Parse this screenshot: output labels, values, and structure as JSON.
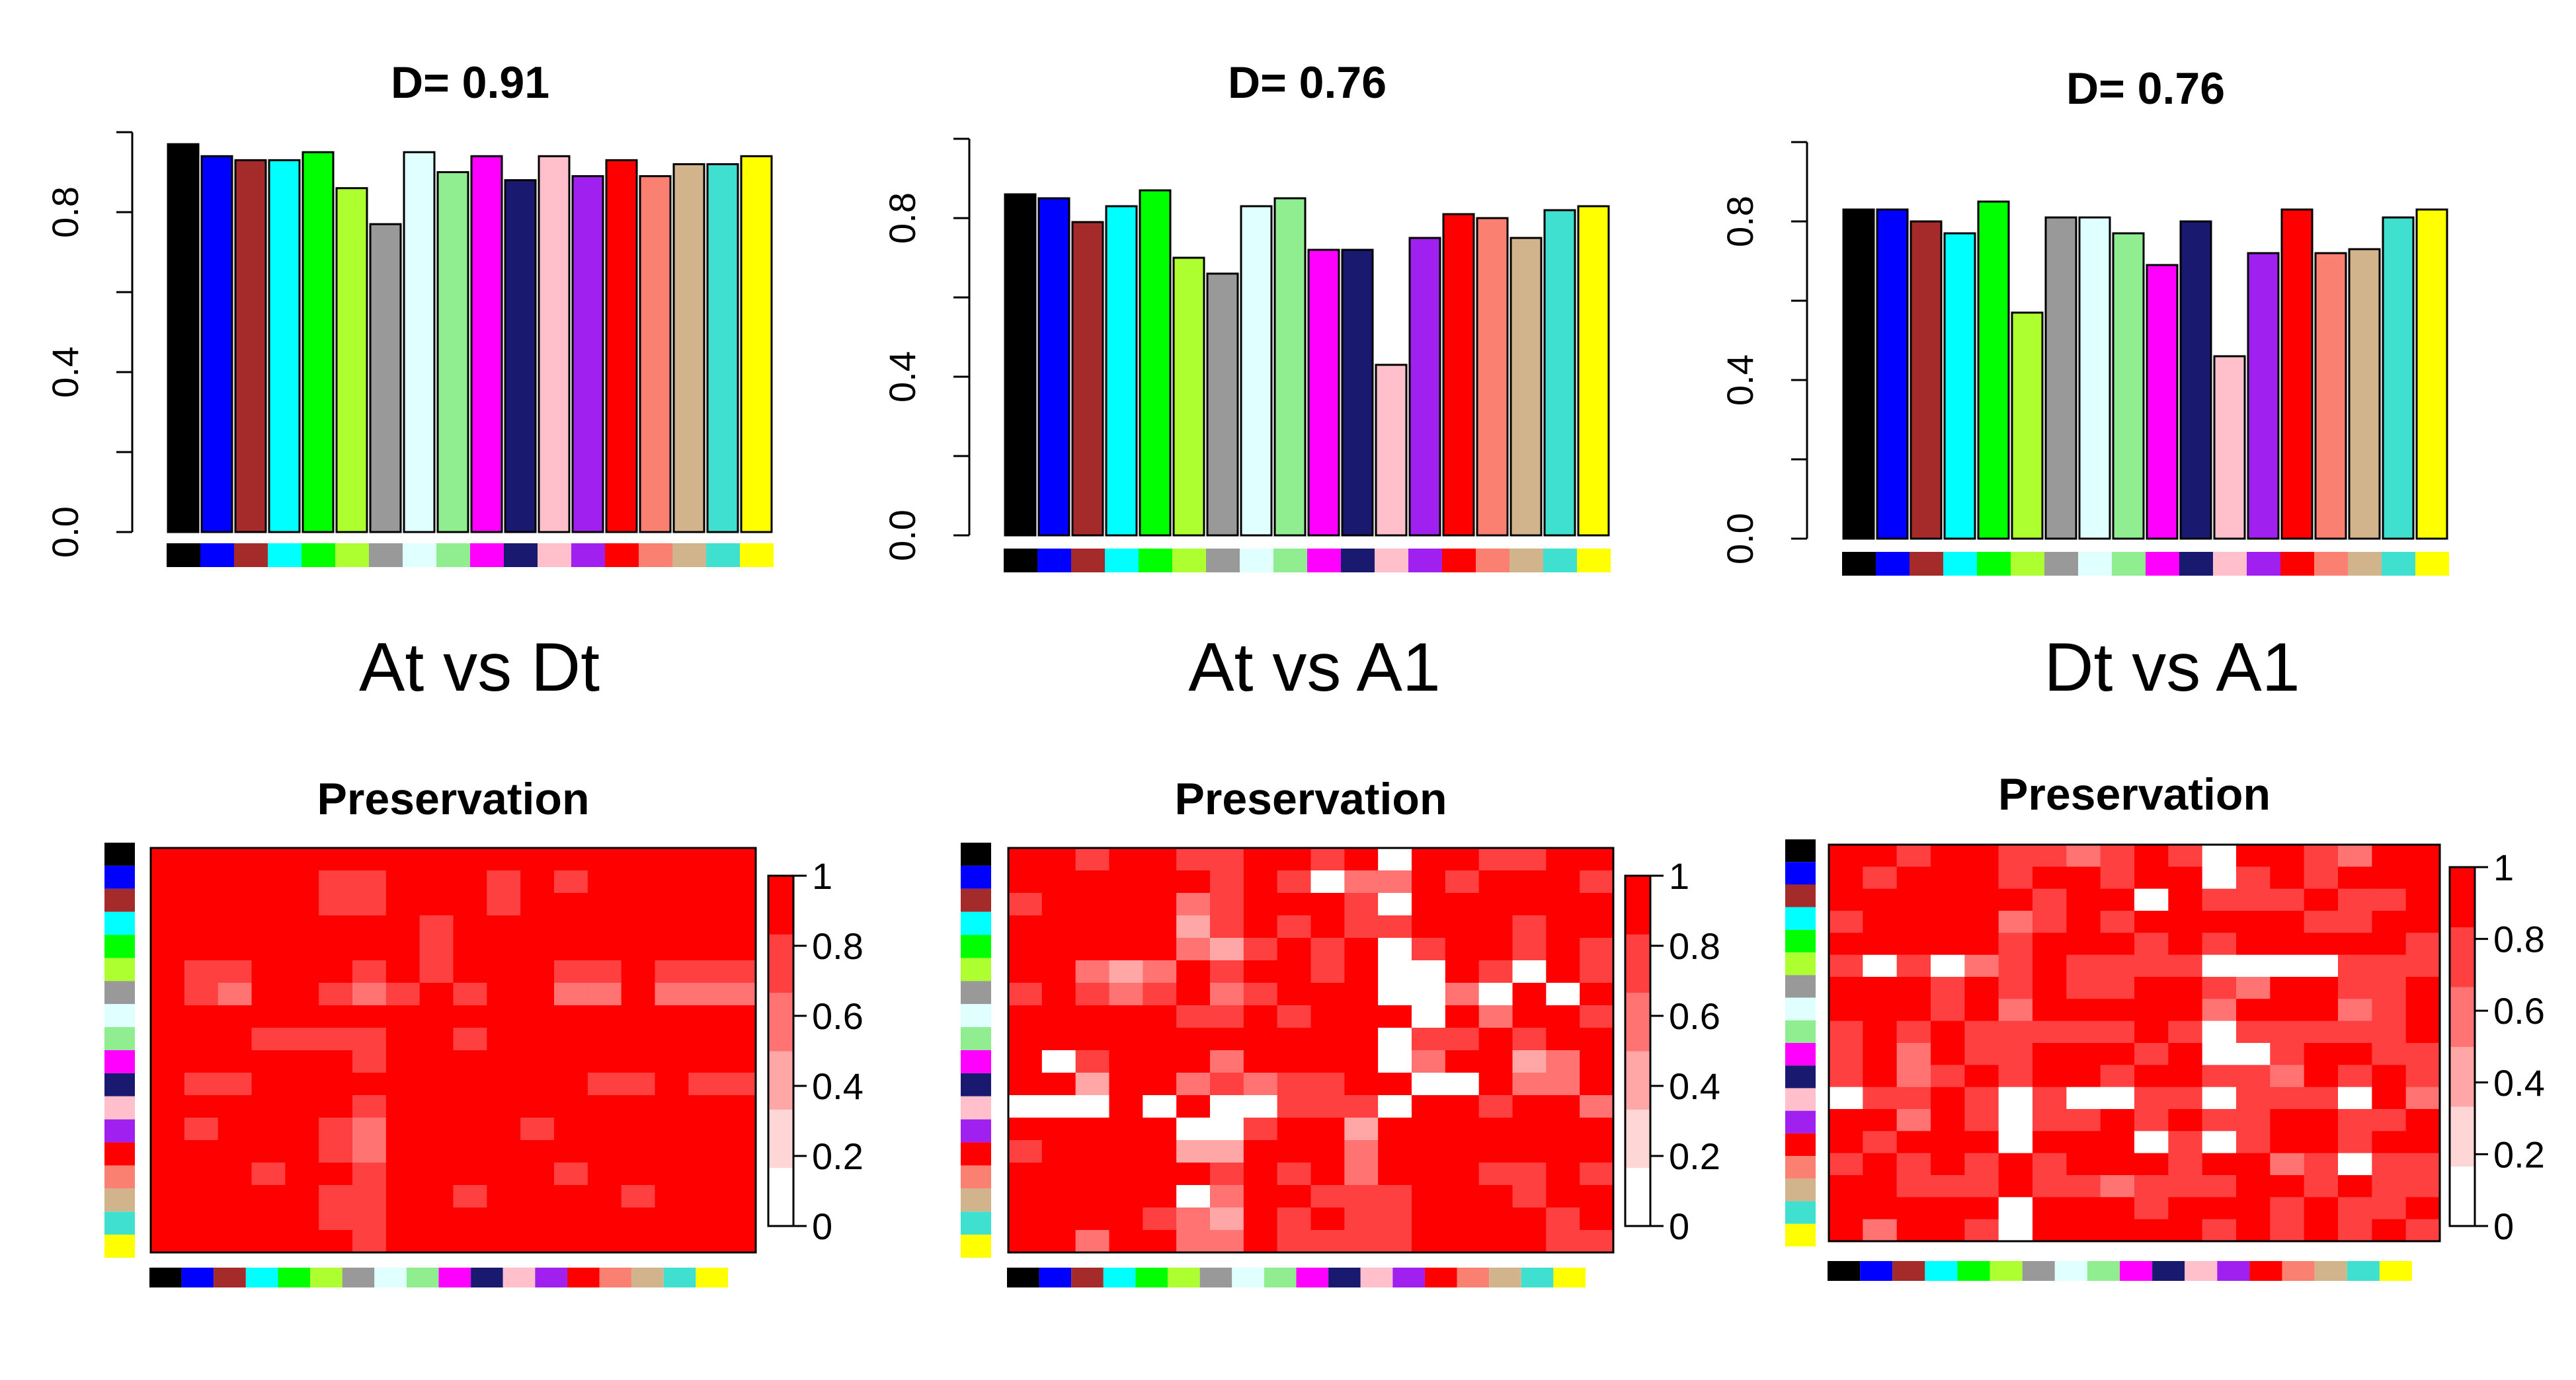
{
  "panel_titles": [
    "At vs Dt",
    "At vs A1",
    "Dt vs A1"
  ],
  "module_colors": [
    "#000000",
    "#0000ff",
    "#a52a2a",
    "#00ffff",
    "#00ff00",
    "#adff2f",
    "#999999",
    "#e0ffff",
    "#90ee90",
    "#ff00ff",
    "#191970",
    "#ffc0cb",
    "#a020f0",
    "#ff0000",
    "#fa8072",
    "#d2b48c",
    "#40e0d0",
    "#ffff00"
  ],
  "heatmap_palette": [
    "#ffffff",
    "#ffd6d6",
    "#ffa6a6",
    "#ff7373",
    "#ff4040",
    "#ff0000"
  ],
  "chart_data": [
    {
      "type": "bar",
      "title": "D= 0.91",
      "ylim": [
        0,
        1
      ],
      "yticks": [
        "0.0",
        "0.4",
        "0.8"
      ],
      "values": [
        0.97,
        0.94,
        0.93,
        0.93,
        0.95,
        0.86,
        0.77,
        0.95,
        0.9,
        0.94,
        0.88,
        0.94,
        0.89,
        0.93,
        0.89,
        0.92,
        0.92,
        0.94
      ]
    },
    {
      "type": "bar",
      "title": "D= 0.76",
      "ylim": [
        0,
        1
      ],
      "yticks": [
        "0.0",
        "0.4",
        "0.8"
      ],
      "values": [
        0.86,
        0.85,
        0.79,
        0.83,
        0.87,
        0.7,
        0.66,
        0.83,
        0.85,
        0.72,
        0.72,
        0.43,
        0.75,
        0.81,
        0.8,
        0.75,
        0.82,
        0.83
      ]
    },
    {
      "type": "bar",
      "title": "D= 0.76",
      "ylim": [
        0,
        1
      ],
      "yticks": [
        "0.0",
        "0.4",
        "0.8"
      ],
      "values": [
        0.83,
        0.83,
        0.8,
        0.77,
        0.85,
        0.57,
        0.81,
        0.81,
        0.77,
        0.69,
        0.8,
        0.46,
        0.72,
        0.83,
        0.72,
        0.73,
        0.81,
        0.83
      ]
    },
    {
      "type": "heatmap",
      "title": "Preservation",
      "legend_ticks": [
        "0",
        "0.2",
        "0.4",
        "0.6",
        "0.8",
        "1"
      ],
      "rows": [
        [
          5,
          5,
          5,
          5,
          5,
          5,
          5,
          5,
          5,
          5,
          5,
          5,
          5,
          5,
          5,
          5,
          5,
          5
        ],
        [
          5,
          5,
          5,
          5,
          5,
          4,
          4,
          5,
          5,
          5,
          4,
          5,
          4,
          5,
          5,
          5,
          5,
          5
        ],
        [
          5,
          5,
          5,
          5,
          5,
          4,
          4,
          5,
          5,
          5,
          4,
          5,
          5,
          5,
          5,
          5,
          5,
          5
        ],
        [
          5,
          5,
          5,
          5,
          5,
          5,
          5,
          5,
          4,
          5,
          5,
          5,
          5,
          5,
          5,
          5,
          5,
          5
        ],
        [
          5,
          5,
          5,
          5,
          5,
          5,
          5,
          5,
          4,
          5,
          5,
          5,
          5,
          5,
          5,
          5,
          5,
          5
        ],
        [
          5,
          4,
          4,
          5,
          5,
          5,
          4,
          5,
          4,
          5,
          5,
          5,
          4,
          4,
          5,
          4,
          4,
          4
        ],
        [
          5,
          4,
          3,
          5,
          5,
          4,
          3,
          4,
          5,
          4,
          5,
          5,
          3,
          3,
          5,
          3,
          3,
          3
        ],
        [
          5,
          5,
          5,
          5,
          5,
          5,
          5,
          5,
          5,
          5,
          5,
          5,
          5,
          5,
          5,
          5,
          5,
          5
        ],
        [
          5,
          5,
          5,
          4,
          4,
          4,
          4,
          5,
          5,
          4,
          5,
          5,
          5,
          5,
          5,
          5,
          5,
          5
        ],
        [
          5,
          5,
          5,
          5,
          5,
          5,
          4,
          5,
          5,
          5,
          5,
          5,
          5,
          5,
          5,
          5,
          5,
          5
        ],
        [
          5,
          4,
          4,
          5,
          5,
          5,
          5,
          5,
          5,
          5,
          5,
          5,
          5,
          4,
          4,
          5,
          4,
          4
        ],
        [
          5,
          5,
          5,
          5,
          5,
          5,
          4,
          5,
          5,
          5,
          5,
          5,
          5,
          5,
          5,
          5,
          5,
          5
        ],
        [
          5,
          4,
          5,
          5,
          5,
          4,
          3,
          5,
          5,
          5,
          5,
          4,
          5,
          5,
          5,
          5,
          5,
          5
        ],
        [
          5,
          5,
          5,
          5,
          5,
          4,
          3,
          5,
          5,
          5,
          5,
          5,
          5,
          5,
          5,
          5,
          5,
          5
        ],
        [
          5,
          5,
          5,
          4,
          5,
          5,
          4,
          5,
          5,
          5,
          5,
          5,
          4,
          5,
          5,
          5,
          5,
          5
        ],
        [
          5,
          5,
          5,
          5,
          5,
          4,
          4,
          5,
          5,
          4,
          5,
          5,
          5,
          5,
          4,
          5,
          5,
          5
        ],
        [
          5,
          5,
          5,
          5,
          5,
          4,
          4,
          5,
          5,
          5,
          5,
          5,
          5,
          5,
          5,
          5,
          5,
          5
        ],
        [
          5,
          5,
          5,
          5,
          5,
          5,
          4,
          5,
          5,
          5,
          5,
          5,
          5,
          5,
          5,
          5,
          5,
          5
        ]
      ]
    },
    {
      "type": "heatmap",
      "title": "Preservation",
      "legend_ticks": [
        "0",
        "0.2",
        "0.4",
        "0.6",
        "0.8",
        "1"
      ],
      "rows": [
        [
          5,
          5,
          4,
          5,
          5,
          4,
          4,
          5,
          5,
          4,
          5,
          0,
          5,
          5,
          4,
          4,
          5,
          5
        ],
        [
          5,
          5,
          5,
          5,
          5,
          5,
          4,
          5,
          4,
          0,
          3,
          3,
          5,
          4,
          5,
          5,
          5,
          4
        ],
        [
          4,
          5,
          5,
          5,
          5,
          3,
          4,
          5,
          5,
          5,
          4,
          0,
          5,
          5,
          5,
          5,
          5,
          5
        ],
        [
          5,
          5,
          5,
          5,
          5,
          2,
          4,
          5,
          4,
          5,
          4,
          4,
          5,
          5,
          5,
          4,
          5,
          5
        ],
        [
          5,
          5,
          5,
          5,
          5,
          3,
          2,
          4,
          5,
          4,
          5,
          0,
          4,
          5,
          5,
          4,
          5,
          4
        ],
        [
          5,
          5,
          3,
          2,
          3,
          5,
          4,
          5,
          5,
          4,
          5,
          0,
          0,
          5,
          4,
          0,
          5,
          4
        ],
        [
          4,
          5,
          4,
          3,
          4,
          5,
          3,
          4,
          5,
          5,
          5,
          0,
          0,
          3,
          0,
          5,
          0,
          5
        ],
        [
          5,
          5,
          5,
          5,
          5,
          4,
          4,
          5,
          4,
          5,
          5,
          5,
          0,
          5,
          3,
          5,
          5,
          4
        ],
        [
          5,
          5,
          5,
          5,
          5,
          5,
          5,
          5,
          5,
          5,
          5,
          0,
          4,
          4,
          5,
          4,
          5,
          5
        ],
        [
          5,
          0,
          4,
          5,
          5,
          5,
          3,
          5,
          5,
          5,
          5,
          0,
          3,
          5,
          5,
          2,
          3,
          5
        ],
        [
          5,
          5,
          2,
          5,
          5,
          3,
          4,
          3,
          4,
          4,
          5,
          5,
          0,
          0,
          5,
          3,
          3,
          5
        ],
        [
          0,
          0,
          0,
          5,
          0,
          5,
          0,
          0,
          4,
          4,
          4,
          0,
          5,
          5,
          4,
          5,
          5,
          3
        ],
        [
          5,
          5,
          5,
          5,
          5,
          0,
          0,
          4,
          5,
          5,
          2,
          5,
          5,
          5,
          5,
          5,
          5,
          5
        ],
        [
          4,
          5,
          5,
          5,
          5,
          2,
          2,
          5,
          5,
          5,
          3,
          5,
          5,
          5,
          5,
          5,
          5,
          5
        ],
        [
          5,
          5,
          5,
          5,
          5,
          5,
          4,
          5,
          4,
          5,
          3,
          5,
          5,
          5,
          4,
          4,
          5,
          4
        ],
        [
          5,
          5,
          5,
          5,
          5,
          0,
          3,
          5,
          5,
          4,
          4,
          4,
          5,
          5,
          5,
          4,
          5,
          5
        ],
        [
          5,
          5,
          5,
          5,
          4,
          3,
          2,
          5,
          4,
          5,
          4,
          4,
          5,
          5,
          5,
          5,
          4,
          5
        ],
        [
          5,
          5,
          3,
          5,
          5,
          3,
          3,
          5,
          4,
          4,
          4,
          4,
          5,
          5,
          5,
          5,
          4,
          4
        ]
      ]
    },
    {
      "type": "heatmap",
      "title": "Preservation",
      "legend_ticks": [
        "0",
        "0.2",
        "0.4",
        "0.6",
        "0.8",
        "1"
      ],
      "rows": [
        [
          5,
          5,
          4,
          5,
          5,
          4,
          4,
          3,
          4,
          5,
          4,
          0,
          5,
          5,
          4,
          3,
          5,
          5
        ],
        [
          5,
          4,
          5,
          5,
          5,
          4,
          5,
          5,
          4,
          5,
          5,
          0,
          4,
          5,
          4,
          5,
          5,
          5
        ],
        [
          5,
          5,
          5,
          5,
          5,
          5,
          4,
          5,
          5,
          0,
          5,
          4,
          4,
          4,
          5,
          4,
          4,
          5
        ],
        [
          4,
          5,
          5,
          5,
          5,
          3,
          4,
          5,
          4,
          5,
          5,
          5,
          5,
          5,
          4,
          4,
          5,
          5
        ],
        [
          5,
          5,
          5,
          5,
          5,
          4,
          5,
          5,
          5,
          4,
          5,
          4,
          5,
          5,
          5,
          5,
          5,
          4
        ],
        [
          4,
          0,
          4,
          0,
          3,
          4,
          5,
          4,
          4,
          4,
          4,
          0,
          0,
          0,
          0,
          4,
          4,
          4
        ],
        [
          5,
          5,
          5,
          4,
          5,
          4,
          5,
          4,
          4,
          5,
          5,
          4,
          3,
          5,
          5,
          4,
          4,
          5
        ],
        [
          5,
          5,
          5,
          4,
          5,
          3,
          5,
          5,
          5,
          5,
          5,
          3,
          5,
          5,
          5,
          3,
          4,
          5
        ],
        [
          4,
          5,
          4,
          5,
          4,
          4,
          4,
          4,
          4,
          5,
          4,
          0,
          4,
          4,
          4,
          4,
          4,
          5
        ],
        [
          4,
          5,
          3,
          5,
          4,
          4,
          5,
          5,
          5,
          4,
          5,
          0,
          0,
          4,
          5,
          5,
          4,
          4
        ],
        [
          4,
          5,
          3,
          4,
          5,
          4,
          5,
          5,
          4,
          5,
          5,
          4,
          4,
          3,
          5,
          4,
          5,
          4
        ],
        [
          0,
          4,
          4,
          5,
          4,
          0,
          4,
          0,
          0,
          4,
          4,
          0,
          4,
          4,
          4,
          0,
          5,
          3
        ],
        [
          5,
          5,
          3,
          5,
          4,
          0,
          4,
          4,
          5,
          4,
          5,
          4,
          4,
          5,
          5,
          4,
          4,
          5
        ],
        [
          5,
          4,
          5,
          5,
          5,
          0,
          5,
          5,
          5,
          0,
          4,
          0,
          4,
          5,
          5,
          4,
          5,
          5
        ],
        [
          4,
          5,
          4,
          5,
          4,
          5,
          4,
          5,
          5,
          5,
          4,
          5,
          5,
          3,
          4,
          0,
          4,
          4
        ],
        [
          5,
          5,
          4,
          4,
          4,
          5,
          4,
          4,
          3,
          4,
          4,
          4,
          5,
          5,
          4,
          5,
          4,
          4
        ],
        [
          5,
          5,
          5,
          5,
          5,
          0,
          5,
          5,
          5,
          4,
          5,
          5,
          5,
          4,
          5,
          4,
          4,
          5
        ],
        [
          5,
          3,
          5,
          5,
          4,
          0,
          5,
          5,
          5,
          5,
          5,
          4,
          5,
          4,
          5,
          4,
          5,
          4
        ]
      ]
    }
  ]
}
